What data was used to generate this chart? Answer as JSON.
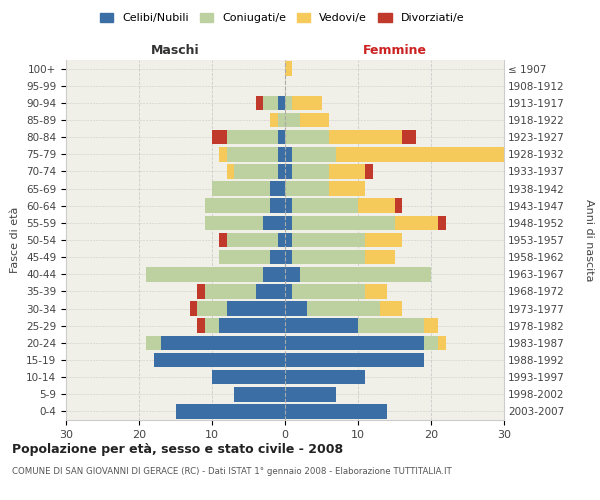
{
  "age_groups": [
    "0-4",
    "5-9",
    "10-14",
    "15-19",
    "20-24",
    "25-29",
    "30-34",
    "35-39",
    "40-44",
    "45-49",
    "50-54",
    "55-59",
    "60-64",
    "65-69",
    "70-74",
    "75-79",
    "80-84",
    "85-89",
    "90-94",
    "95-99",
    "100+"
  ],
  "birth_years": [
    "2003-2007",
    "1998-2002",
    "1993-1997",
    "1988-1992",
    "1983-1987",
    "1978-1982",
    "1973-1977",
    "1968-1972",
    "1963-1967",
    "1958-1962",
    "1953-1957",
    "1948-1952",
    "1943-1947",
    "1938-1942",
    "1933-1937",
    "1928-1932",
    "1923-1927",
    "1918-1922",
    "1913-1917",
    "1908-1912",
    "≤ 1907"
  ],
  "colors": {
    "celibi": "#3A6EA5",
    "coniugati": "#BDD0A0",
    "vedovi": "#F6CA5A",
    "divorziati": "#C0392B"
  },
  "males": {
    "celibi": [
      15,
      7,
      10,
      18,
      17,
      9,
      8,
      4,
      3,
      2,
      1,
      3,
      2,
      2,
      1,
      1,
      1,
      0,
      1,
      0,
      0
    ],
    "coniugati": [
      0,
      0,
      0,
      0,
      2,
      2,
      4,
      7,
      16,
      7,
      7,
      8,
      9,
      8,
      6,
      7,
      7,
      1,
      2,
      0,
      0
    ],
    "vedovi": [
      0,
      0,
      0,
      0,
      0,
      0,
      0,
      0,
      0,
      0,
      0,
      0,
      0,
      0,
      1,
      1,
      0,
      1,
      0,
      0,
      0
    ],
    "divorziati": [
      0,
      0,
      0,
      0,
      0,
      1,
      1,
      1,
      0,
      0,
      1,
      0,
      0,
      0,
      0,
      0,
      2,
      0,
      1,
      0,
      0
    ]
  },
  "females": {
    "nubili": [
      14,
      7,
      11,
      19,
      19,
      10,
      3,
      1,
      2,
      1,
      1,
      1,
      1,
      0,
      1,
      1,
      0,
      0,
      0,
      0,
      0
    ],
    "coniugate": [
      0,
      0,
      0,
      0,
      2,
      9,
      10,
      10,
      18,
      10,
      10,
      14,
      9,
      6,
      5,
      6,
      6,
      2,
      1,
      0,
      0
    ],
    "vedove": [
      0,
      0,
      0,
      0,
      1,
      2,
      3,
      3,
      0,
      4,
      5,
      6,
      5,
      5,
      5,
      26,
      10,
      4,
      4,
      0,
      1
    ],
    "divorziate": [
      0,
      0,
      0,
      0,
      0,
      0,
      0,
      0,
      0,
      0,
      0,
      1,
      1,
      0,
      1,
      0,
      2,
      0,
      0,
      0,
      0
    ]
  },
  "xlim": 30,
  "title": "Popolazione per età, sesso e stato civile - 2008",
  "subtitle": "COMUNE DI SAN GIOVANNI DI GERACE (RC) - Dati ISTAT 1° gennaio 2008 - Elaborazione TUTTITALIA.IT",
  "ylabel_left": "Fasce di età",
  "ylabel_right": "Anni di nascita",
  "xlabel_males": "Maschi",
  "xlabel_females": "Femmine",
  "plot_bg": "#F0F0E8",
  "fig_bg": "#FFFFFF",
  "grid_color": "#CCCCCC",
  "bar_height": 0.85
}
